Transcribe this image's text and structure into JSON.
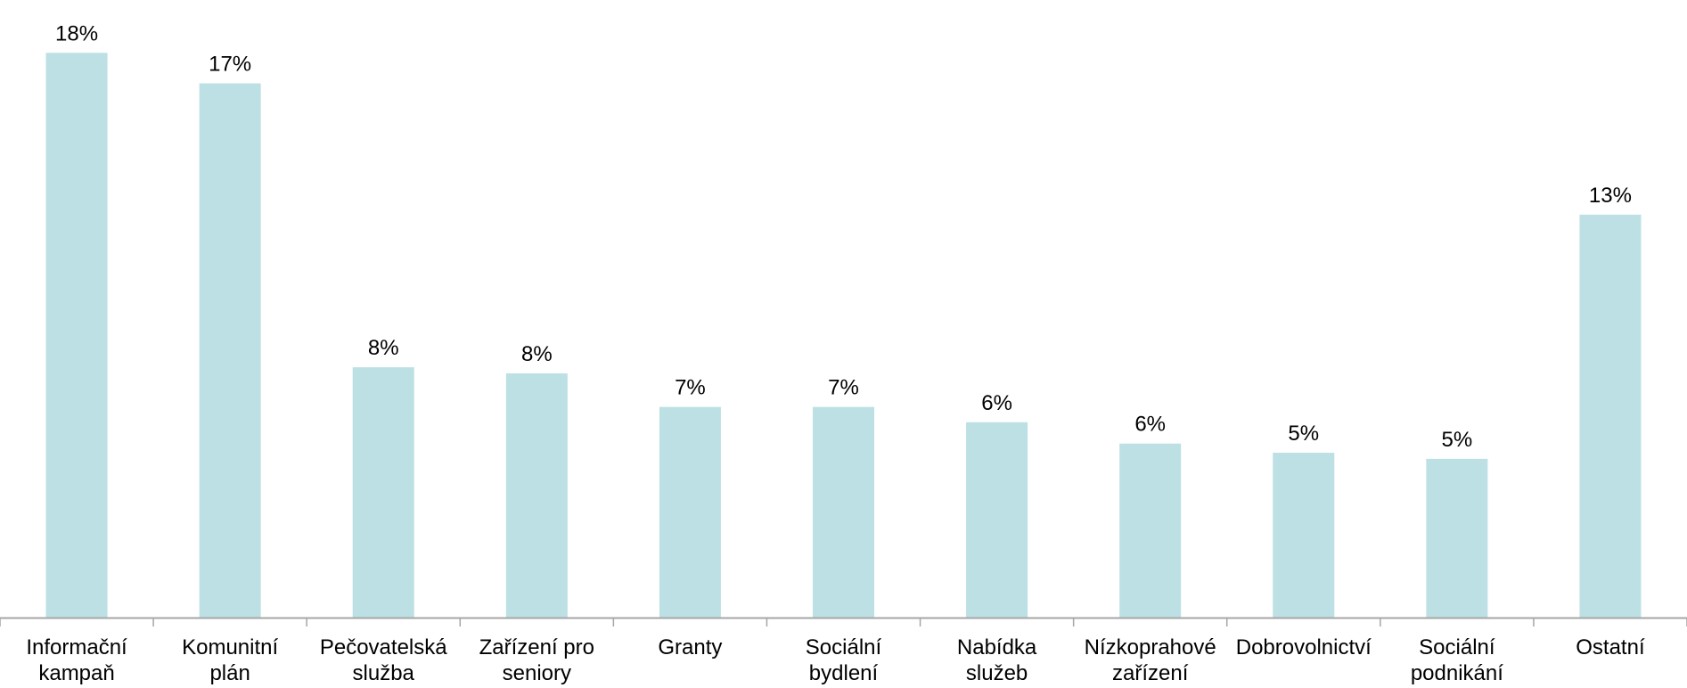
{
  "chart_data": {
    "type": "bar",
    "categories": [
      [
        "Informační",
        "kampaň"
      ],
      [
        "Komunitní",
        "plán"
      ],
      [
        "Pečovatelská",
        "služba"
      ],
      [
        "Zařízení pro",
        "seniory"
      ],
      [
        "Granty"
      ],
      [
        "Sociální",
        "bydlení"
      ],
      [
        "Nabídka",
        "služeb"
      ],
      [
        "Nízkoprahové",
        "zařízení"
      ],
      [
        "Dobrovolnictví"
      ],
      [
        "Sociální",
        "podnikání"
      ],
      [
        "Ostatní"
      ]
    ],
    "values": [
      18.5,
      17.5,
      8.2,
      8.0,
      6.9,
      6.9,
      6.4,
      5.7,
      5.4,
      5.2,
      13.2
    ],
    "data_labels": [
      "18%",
      "17%",
      "8%",
      "8%",
      "7%",
      "7%",
      "6%",
      "6%",
      "5%",
      "5%",
      "13%"
    ],
    "ylim": [
      0,
      19.5
    ],
    "bar_color": "#bce0e3",
    "axis_color": "#a6a6a6",
    "grid": false,
    "legend": "none"
  }
}
